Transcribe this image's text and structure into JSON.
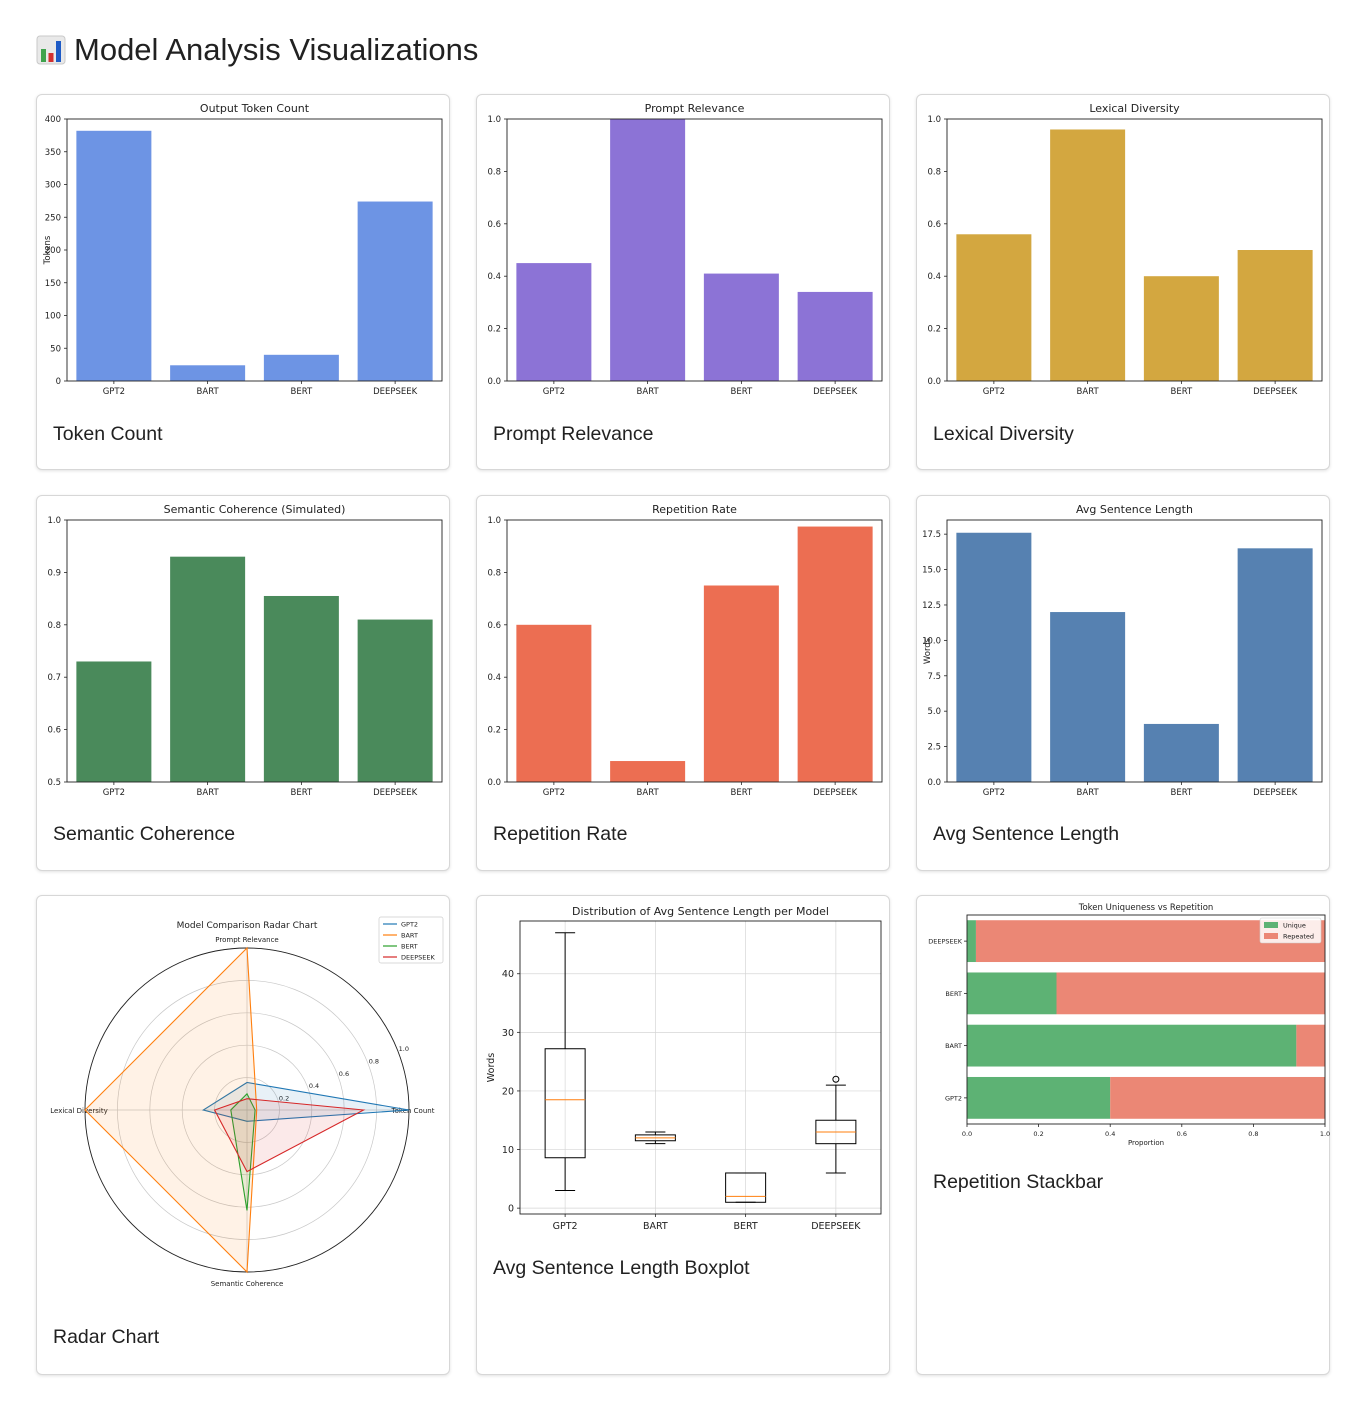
{
  "page": {
    "title": "Model Analysis Visualizations",
    "icon": "bar-chart-icon"
  },
  "cards": [
    {
      "label": "Token Count"
    },
    {
      "label": "Prompt Relevance"
    },
    {
      "label": "Lexical Diversity"
    },
    {
      "label": "Semantic Coherence"
    },
    {
      "label": "Repetition Rate"
    },
    {
      "label": "Avg Sentence Length"
    },
    {
      "label": "Radar Chart"
    },
    {
      "label": "Avg Sentence Length Boxplot"
    },
    {
      "label": "Repetition Stackbar"
    }
  ],
  "chart_data": [
    {
      "type": "bar",
      "title": "Output Token Count",
      "ylabel": "Tokens",
      "xlabel": "",
      "categories": [
        "GPT2",
        "BART",
        "BERT",
        "DEEPSEEK"
      ],
      "values": [
        382,
        24,
        40,
        274
      ],
      "ylim": [
        0,
        400
      ],
      "yticks": [
        0,
        50,
        100,
        150,
        200,
        250,
        300,
        350,
        400
      ],
      "color": "#6d94e4"
    },
    {
      "type": "bar",
      "title": "Prompt Relevance",
      "ylabel": "",
      "xlabel": "",
      "categories": [
        "GPT2",
        "BART",
        "BERT",
        "DEEPSEEK"
      ],
      "values": [
        0.45,
        1.0,
        0.41,
        0.34
      ],
      "ylim": [
        0,
        1.0
      ],
      "yticks": [
        "0.0",
        "0.2",
        "0.4",
        "0.6",
        "0.8",
        "1.0"
      ],
      "color": "#8c73d6"
    },
    {
      "type": "bar",
      "title": "Lexical Diversity",
      "ylabel": "",
      "xlabel": "",
      "categories": [
        "GPT2",
        "BART",
        "BERT",
        "DEEPSEEK"
      ],
      "values": [
        0.56,
        0.96,
        0.4,
        0.5
      ],
      "ylim": [
        0,
        1.0
      ],
      "yticks": [
        "0.0",
        "0.2",
        "0.4",
        "0.6",
        "0.8",
        "1.0"
      ],
      "color": "#d3a740"
    },
    {
      "type": "bar",
      "title": "Semantic Coherence (Simulated)",
      "ylabel": "",
      "xlabel": "",
      "categories": [
        "GPT2",
        "BART",
        "BERT",
        "DEEPSEEK"
      ],
      "values": [
        0.73,
        0.93,
        0.855,
        0.81
      ],
      "ylim": [
        0.5,
        1.0
      ],
      "yticks": [
        "0.5",
        "0.6",
        "0.7",
        "0.8",
        "0.9",
        "1.0"
      ],
      "color": "#4a8a5b"
    },
    {
      "type": "bar",
      "title": "Repetition Rate",
      "ylabel": "",
      "xlabel": "",
      "categories": [
        "GPT2",
        "BART",
        "BERT",
        "DEEPSEEK"
      ],
      "values": [
        0.6,
        0.08,
        0.75,
        0.975
      ],
      "ylim": [
        0,
        1.0
      ],
      "yticks": [
        "0.0",
        "0.2",
        "0.4",
        "0.6",
        "0.8",
        "1.0"
      ],
      "color": "#ec6e52"
    },
    {
      "type": "bar",
      "title": "Avg Sentence Length",
      "ylabel": "Words",
      "xlabel": "",
      "categories": [
        "GPT2",
        "BART",
        "BERT",
        "DEEPSEEK"
      ],
      "values": [
        17.6,
        12.0,
        4.1,
        16.5
      ],
      "ylim": [
        0,
        18.5
      ],
      "yticks": [
        "0.0",
        "2.5",
        "5.0",
        "7.5",
        "10.0",
        "12.5",
        "15.0",
        "17.5"
      ],
      "color": "#5681b1"
    },
    {
      "type": "radar",
      "title": "Model Comparison Radar Chart",
      "axes": [
        "Token Count",
        "Prompt Relevance",
        "Lexical Diversity",
        "Semantic Coherence"
      ],
      "rticks": [
        "0.2",
        "0.4",
        "0.6",
        "0.8",
        "1.0"
      ],
      "series": [
        {
          "name": "GPT2",
          "color": "#1f77b4",
          "values": [
            1.0,
            0.17,
            0.27,
            0.07
          ]
        },
        {
          "name": "BART",
          "color": "#ff7f0e",
          "values": [
            0.06,
            1.0,
            1.0,
            1.0
          ]
        },
        {
          "name": "BERT",
          "color": "#2ca02c",
          "values": [
            0.05,
            0.1,
            0.1,
            0.62
          ]
        },
        {
          "name": "DEEPSEEK",
          "color": "#d62728",
          "values": [
            0.72,
            0.07,
            0.2,
            0.38
          ]
        }
      ]
    },
    {
      "type": "boxplot",
      "title": "Distribution of Avg Sentence Length per Model",
      "ylabel": "Words",
      "xlabel": "",
      "categories": [
        "GPT2",
        "BART",
        "BERT",
        "DEEPSEEK"
      ],
      "ylim": [
        -1,
        49
      ],
      "yticks": [
        0,
        10,
        20,
        30,
        40
      ],
      "boxes": [
        {
          "min": 3,
          "q1": 8.6,
          "median": 18.5,
          "q3": 27.2,
          "max": 47,
          "outliers": []
        },
        {
          "min": 11,
          "q1": 11.5,
          "median": 12,
          "q3": 12.5,
          "max": 13,
          "outliers": []
        },
        {
          "min": 1,
          "q1": 1,
          "median": 2,
          "q3": 6,
          "max": 6,
          "outliers": []
        },
        {
          "min": 6,
          "q1": 11,
          "median": 13,
          "q3": 15,
          "max": 21,
          "outliers": [
            22
          ]
        }
      ]
    },
    {
      "type": "stacked-bar-horizontal",
      "title": "Token Uniqueness vs Repetition",
      "xlabel": "Proportion",
      "ylabel": "",
      "categories": [
        "GPT2",
        "BART",
        "BERT",
        "DEEPSEEK"
      ],
      "series": [
        {
          "name": "Unique",
          "color": "#5db274",
          "values": [
            0.4,
            0.92,
            0.25,
            0.025
          ]
        },
        {
          "name": "Repeated",
          "color": "#eb8775",
          "values": [
            0.6,
            0.08,
            0.75,
            0.975
          ]
        }
      ],
      "xlim": [
        0,
        1.0
      ],
      "xticks": [
        "0.0",
        "0.2",
        "0.4",
        "0.6",
        "0.8",
        "1.0"
      ]
    }
  ]
}
